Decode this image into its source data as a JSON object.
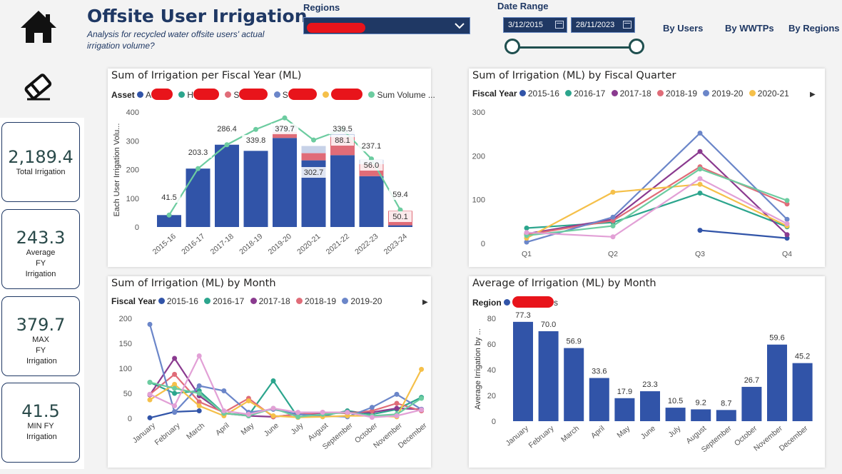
{
  "header": {
    "title": "Offsite User Irrigation",
    "subtitle": "Analysis for recycled water offsite users' actual irrigation volume?"
  },
  "icons": {
    "home": "home-icon",
    "eraser": "eraser-icon",
    "dropdown": "chevron-down-icon",
    "calendar": "calendar-icon"
  },
  "filters": {
    "regions_label": "Regions",
    "date_range_label": "Date Range",
    "date_start": "3/12/2015",
    "date_end": "28/11/2023",
    "slider_position": [
      0.0,
      1.0
    ]
  },
  "nav": {
    "by_users": "By Users",
    "by_wwtps": "By WWTPs",
    "by_regions": "By Regions"
  },
  "kpis": [
    {
      "value": "2,189.4",
      "label": "Total Irrigation"
    },
    {
      "value": "243.3",
      "label": "Average FY Irrigation"
    },
    {
      "value": "379.7",
      "label": "MAX FY Irrigation"
    },
    {
      "value": "41.5",
      "label": "MIN FY Irrigation"
    }
  ],
  "colors": {
    "navy": "#1f3864",
    "bar_blue": "#3154a8",
    "teal_line": "#6ccca0",
    "redaction": "#e8141b"
  },
  "chart_data": [
    {
      "type": "bar",
      "title": "Sum of Irrigation per Fiscal Year (ML)",
      "legend_title": "Asset",
      "legend_items": [
        {
          "name": "A",
          "color": "#3154a8"
        },
        {
          "name": "H",
          "color": "#2ca58d"
        },
        {
          "name": "S",
          "color": "#e06c78"
        },
        {
          "name": "S",
          "color": "#6b86c9"
        },
        {
          "name": "",
          "color": "#f5c04a"
        },
        {
          "name": "Sum Volume ...",
          "color": "#6ccca0"
        }
      ],
      "ylabel": "Each User Irrigation Volu...",
      "ylim": [
        0,
        400
      ],
      "yticks": [
        0,
        100,
        200,
        300,
        400
      ],
      "categories": [
        "2015-16",
        "2016-17",
        "2017-18",
        "2018-19",
        "2019-20",
        "2020-21",
        "2021-22",
        "2022-23",
        "2023-24"
      ],
      "series": [
        {
          "name": "A",
          "values": [
            41.5,
            203.3,
            286.4,
            265,
            310,
            232,
            250,
            177,
            6
          ]
        },
        {
          "name": "S",
          "values": [
            0,
            0,
            0,
            0,
            20,
            25,
            63,
            42,
            50.1
          ]
        },
        {
          "name": "S",
          "values": [
            0,
            0,
            0,
            0,
            20,
            25,
            25,
            15,
            0
          ]
        },
        {
          "name": "Sum Volume ...",
          "values": [
            41.5,
            203.3,
            286.4,
            339.8,
            379.7,
            302.7,
            339.5,
            237.1,
            59.4
          ]
        }
      ],
      "data_labels": [
        {
          "category": "2015-16",
          "text": "41.5"
        },
        {
          "category": "2016-17",
          "text": "203.3"
        },
        {
          "category": "2017-18",
          "text": "286.4"
        },
        {
          "category": "2018-19",
          "text": "339.8"
        },
        {
          "category": "2019-20",
          "text": "379.7"
        },
        {
          "category": "2020-21",
          "text": "302.7"
        },
        {
          "category": "2021-22",
          "text": "88.1"
        },
        {
          "category": "2021-22",
          "text": "339.5"
        },
        {
          "category": "2022-23",
          "text": "237.1"
        },
        {
          "category": "2022-23",
          "text": "56.0"
        },
        {
          "category": "2023-24",
          "text": "59.4"
        },
        {
          "category": "2023-24",
          "text": "50.1"
        }
      ]
    },
    {
      "type": "line",
      "title": "Sum of Irrigation (ML) by Fiscal Quarter",
      "legend_title": "Fiscal Year",
      "ylim": [
        0,
        300
      ],
      "yticks": [
        0,
        100,
        200,
        300
      ],
      "categories": [
        "Q1",
        "Q2",
        "Q3",
        "Q4"
      ],
      "series": [
        {
          "name": "2015-16",
          "color": "#3154a8",
          "values": [
            null,
            null,
            30,
            12
          ]
        },
        {
          "name": "2016-17",
          "color": "#2ca58d",
          "values": [
            35,
            48,
            115,
            38
          ]
        },
        {
          "name": "2017-18",
          "color": "#8a3a8f",
          "values": [
            22,
            55,
            210,
            20
          ]
        },
        {
          "name": "2018-19",
          "color": "#e06c78",
          "values": [
            20,
            52,
            175,
            90
          ]
        },
        {
          "name": "2019-20",
          "color": "#6b86c9",
          "values": [
            3,
            60,
            252,
            55
          ]
        },
        {
          "name": "2020-21",
          "color": "#f5c04a",
          "values": [
            12,
            117,
            135,
            40
          ]
        },
        {
          "name": "",
          "color": "#6ccca0",
          "values": [
            18,
            40,
            170,
            98
          ]
        },
        {
          "name": "",
          "color": "#e2a0d6",
          "values": [
            25,
            15,
            148,
            45
          ]
        }
      ]
    },
    {
      "type": "line",
      "title": "Sum of Irrigation (ML) by Month",
      "legend_title": "Fiscal Year",
      "ylim": [
        0,
        200
      ],
      "yticks": [
        0,
        50,
        100,
        150,
        200
      ],
      "categories": [
        "January",
        "February",
        "March",
        "April",
        "May",
        "June",
        "July",
        "August",
        "September",
        "October",
        "November",
        "December"
      ],
      "series": [
        {
          "name": "2015-16",
          "color": "#3154a8",
          "values": [
            1,
            13,
            15,
            null,
            null,
            null,
            null,
            null,
            null,
            null,
            null,
            null
          ]
        },
        {
          "name": "2016-17",
          "color": "#2ca58d",
          "values": [
            72,
            50,
            55,
            10,
            6,
            75,
            2,
            5,
            15,
            8,
            18,
            42
          ]
        },
        {
          "name": "2017-18",
          "color": "#8a3a8f",
          "values": [
            47,
            120,
            45,
            10,
            5,
            3,
            8,
            10,
            12,
            12,
            20,
            18
          ]
        },
        {
          "name": "2018-19",
          "color": "#e06c78",
          "values": [
            48,
            88,
            33,
            12,
            40,
            3,
            8,
            12,
            10,
            15,
            30,
            15
          ]
        },
        {
          "name": "2019-20",
          "color": "#6b86c9",
          "values": [
            188,
            12,
            65,
            55,
            12,
            18,
            8,
            5,
            3,
            22,
            48,
            18
          ]
        },
        {
          "name": "",
          "color": "#f5c04a",
          "values": [
            37,
            68,
            25,
            5,
            35,
            5,
            2,
            3,
            5,
            5,
            3,
            98
          ]
        },
        {
          "name": "",
          "color": "#6ccca0",
          "values": [
            72,
            60,
            50,
            10,
            5,
            20,
            3,
            8,
            12,
            5,
            8,
            40
          ]
        },
        {
          "name": "",
          "color": "#e2a0d6",
          "values": [
            48,
            25,
            125,
            15,
            8,
            20,
            12,
            12,
            12,
            2,
            5,
            17
          ]
        }
      ]
    },
    {
      "type": "bar",
      "title": "Average of Irrigation (ML) by Month",
      "legend_title": "Region",
      "legend_items": [
        {
          "name": "s",
          "color": "#3154a8"
        }
      ],
      "ylabel": "Average Irrigation by ...",
      "ylim": [
        0,
        80
      ],
      "yticks": [
        0,
        20,
        40,
        60,
        80
      ],
      "categories": [
        "January",
        "February",
        "March",
        "April",
        "May",
        "June",
        "July",
        "August",
        "September",
        "October",
        "November",
        "December"
      ],
      "values": [
        77.3,
        70.0,
        56.9,
        33.6,
        17.9,
        23.3,
        10.5,
        9.2,
        8.7,
        26.7,
        59.6,
        45.2
      ],
      "value_labels": [
        "77.3",
        "70.0",
        "56.9",
        "33.6",
        "17.9",
        "23.3",
        "10.5",
        "9.2",
        "8.7",
        "26.7",
        "59.6",
        "45.2"
      ]
    }
  ]
}
